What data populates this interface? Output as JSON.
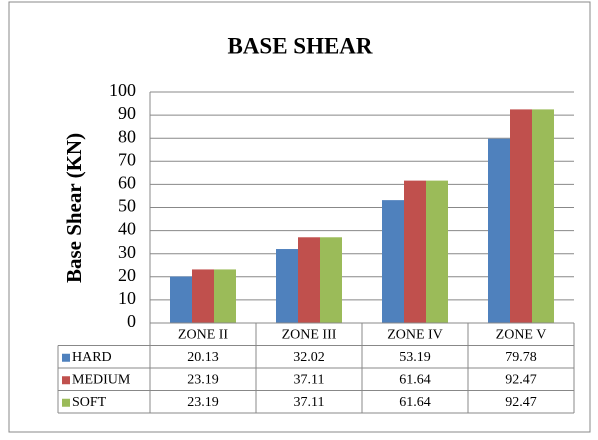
{
  "chart_data": {
    "type": "bar",
    "title": "BASE SHEAR",
    "y_label": "Base Shear (KN)",
    "categories": [
      "ZONE II",
      "ZONE III",
      "ZONE IV",
      "ZONE V"
    ],
    "series": [
      {
        "name": "HARD",
        "color": "#4f81bd",
        "values": [
          20.13,
          32.02,
          53.19,
          79.78
        ]
      },
      {
        "name": "MEDIUM",
        "color": "#c0504d",
        "values": [
          23.19,
          37.11,
          61.64,
          92.47
        ]
      },
      {
        "name": "SOFT",
        "color": "#9bbb59",
        "values": [
          23.19,
          37.11,
          61.64,
          92.47
        ]
      }
    ],
    "ylim": [
      0,
      100
    ],
    "yticks": [
      0,
      10,
      20,
      30,
      40,
      50,
      60,
      70,
      80,
      90,
      100
    ],
    "grid": true,
    "data_table": true
  }
}
